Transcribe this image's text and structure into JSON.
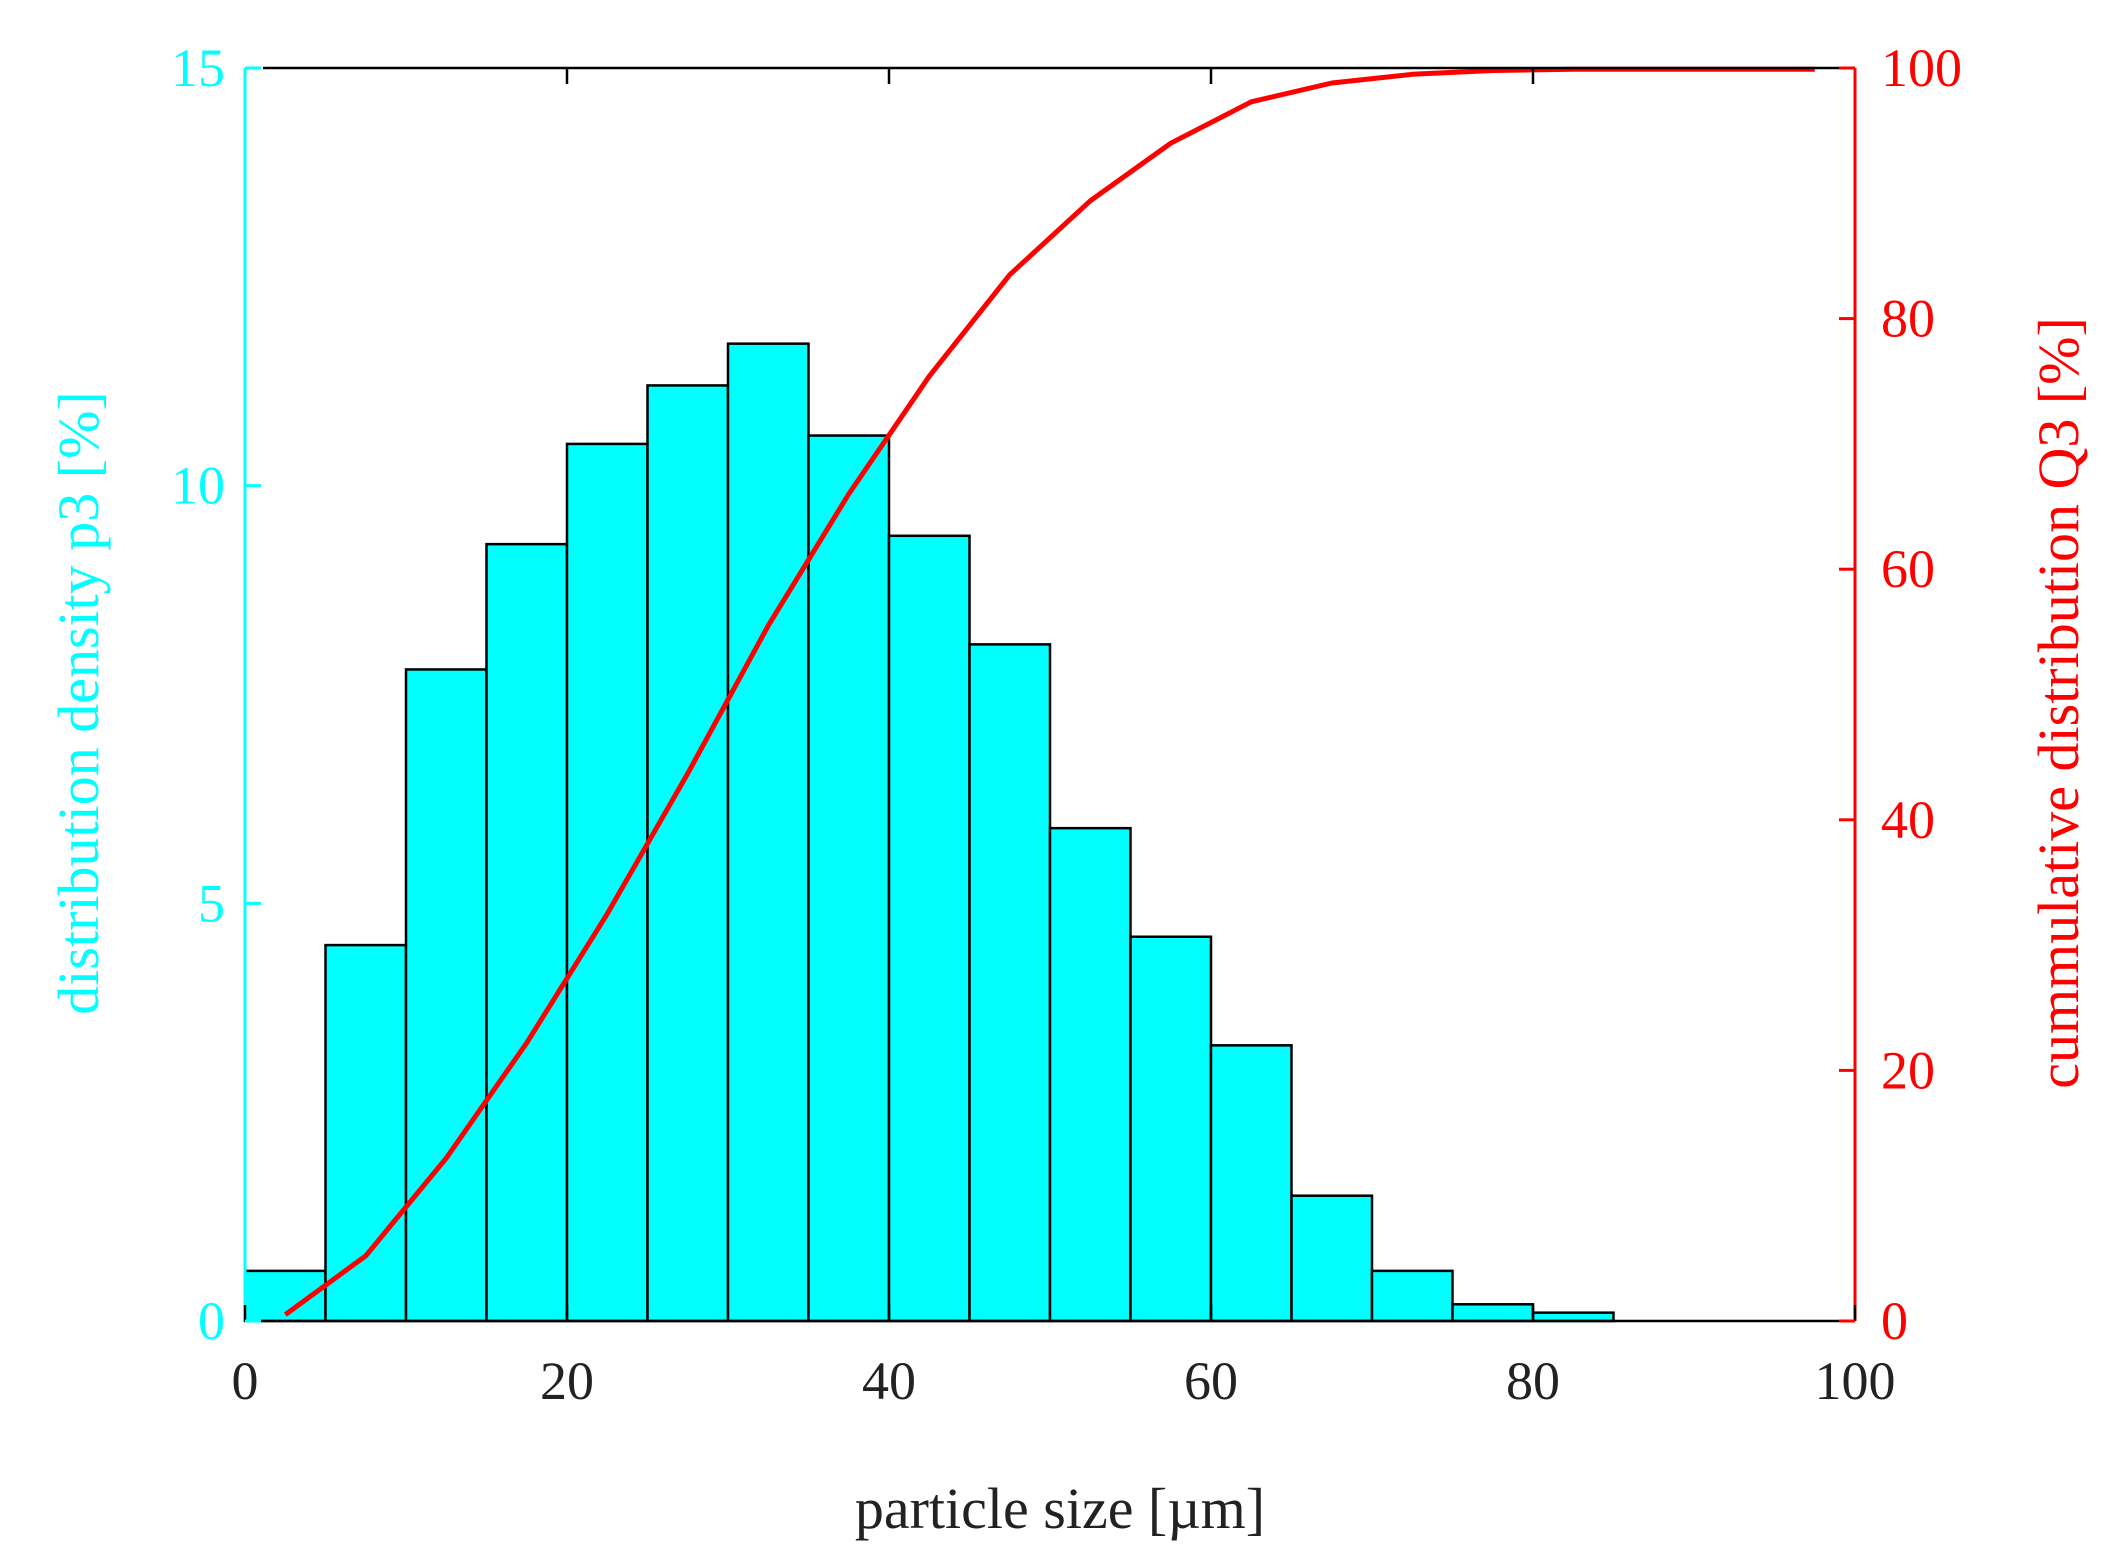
{
  "chart_data": {
    "type": "bar",
    "title": "",
    "xlabel": "particle size [µm]",
    "ylabel_left": "distribution density p3 [%]",
    "ylabel_right": "cummulative distribution Q3 [%]",
    "xlim": [
      0,
      100
    ],
    "ylim_left": [
      0,
      15
    ],
    "ylim_right": [
      0,
      100
    ],
    "x_ticks": [
      "0",
      "20",
      "40",
      "60",
      "80",
      "100"
    ],
    "y_left_ticks": [
      "0",
      "5",
      "10",
      "15"
    ],
    "y_right_ticks": [
      "0",
      "20",
      "40",
      "60",
      "80",
      "100"
    ],
    "grid": false,
    "colors": {
      "bars": "#00ffff",
      "bar_edge": "#000000",
      "cumulative": "#ff0000",
      "left_axis": "#00ffff",
      "right_axis": "#ff0000",
      "box": "#000000"
    },
    "histogram": {
      "name": "distribution density p3",
      "bin_edges": [
        0,
        5,
        10,
        15,
        20,
        25,
        30,
        35,
        40,
        45,
        50,
        55,
        60,
        65,
        70,
        75,
        80,
        85,
        90,
        95,
        100
      ],
      "values": [
        0.6,
        4.5,
        7.8,
        9.3,
        10.5,
        11.2,
        11.7,
        10.6,
        9.4,
        8.1,
        5.9,
        4.6,
        3.3,
        1.5,
        0.6,
        0.2,
        0.1,
        0,
        0,
        0
      ]
    },
    "cumulative": {
      "name": "cummulative distribution Q3",
      "x": [
        2.5,
        7.5,
        12.5,
        17.5,
        22.5,
        27.5,
        32.5,
        37.5,
        42.5,
        47.5,
        52.5,
        57.5,
        62.5,
        67.5,
        72.5,
        77.5,
        82.5,
        87.5,
        92.5,
        97.5
      ],
      "y": [
        0.5,
        5.2,
        13,
        22.2,
        32.5,
        43.7,
        55.5,
        66,
        75.4,
        83.5,
        89.4,
        94,
        97.3,
        98.8,
        99.5,
        99.8,
        99.9,
        99.9,
        99.9,
        99.9
      ]
    }
  }
}
